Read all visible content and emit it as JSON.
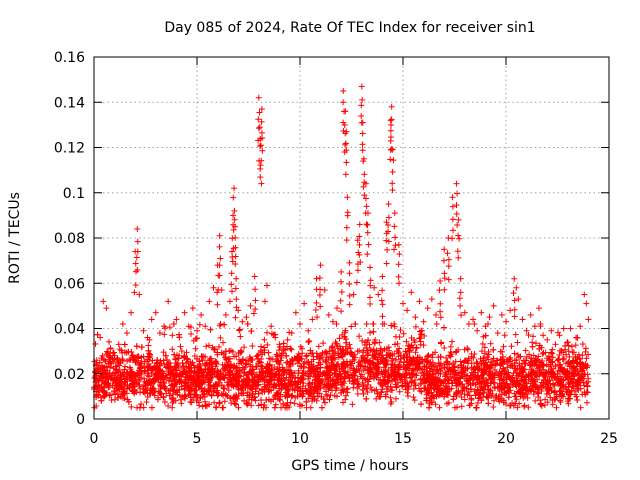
{
  "chart_data": {
    "type": "scatter",
    "title": "Day 085 of 2024, Rate Of TEC Index for receiver sin1",
    "xlabel": "GPS time / hours",
    "ylabel": "ROTI / TECUs",
    "xlim": [
      0,
      25
    ],
    "ylim": [
      0,
      0.16
    ],
    "x_ticks": [
      0,
      5,
      10,
      15,
      20,
      25
    ],
    "y_ticks": [
      0,
      0.02,
      0.04,
      0.06,
      0.08,
      0.1,
      0.12,
      0.14,
      0.16
    ],
    "x_tick_labels": [
      "0",
      "5",
      "10",
      "15",
      "20",
      "25"
    ],
    "y_tick_labels": [
      "0",
      "0.02",
      "0.04",
      "0.06",
      "0.08",
      "0.1",
      "0.12",
      "0.14",
      "0.16"
    ],
    "grid": true,
    "marker": "+",
    "marker_color": "#ff0000",
    "series": [
      {
        "name": "ROTI",
        "x": [
          0.1,
          0.3,
          0.45,
          0.6,
          0.8,
          1.0,
          1.2,
          1.4,
          1.6,
          1.8,
          2.0,
          2.1,
          2.2,
          2.4,
          2.6,
          2.8,
          3.0,
          3.2,
          3.4,
          3.6,
          3.8,
          4.0,
          4.2,
          4.4,
          4.6,
          4.8,
          5.0,
          5.2,
          5.4,
          5.6,
          5.8,
          6.0,
          6.1,
          6.2,
          6.4,
          6.6,
          6.7,
          6.75,
          6.8,
          6.85,
          6.9,
          7.0,
          7.2,
          7.4,
          7.6,
          7.8,
          8.0,
          8.05,
          8.1,
          8.15,
          8.3,
          8.4,
          8.6,
          8.8,
          9.0,
          9.2,
          9.4,
          9.6,
          9.8,
          10.0,
          10.2,
          10.4,
          10.6,
          10.8,
          11.0,
          11.2,
          11.4,
          11.6,
          11.8,
          12.0,
          12.1,
          12.2,
          12.25,
          12.3,
          12.4,
          12.6,
          12.8,
          12.9,
          13.0,
          13.05,
          13.1,
          13.2,
          13.3,
          13.4,
          13.6,
          13.8,
          14.0,
          14.2,
          14.3,
          14.4,
          14.45,
          14.5,
          14.6,
          14.8,
          15.0,
          15.2,
          15.4,
          15.6,
          15.8,
          16.0,
          16.2,
          16.4,
          16.6,
          16.8,
          17.0,
          17.2,
          17.4,
          17.6,
          17.7,
          17.8,
          18.0,
          18.2,
          18.4,
          18.6,
          18.8,
          19.0,
          19.2,
          19.4,
          19.6,
          19.8,
          20.0,
          20.2,
          20.4,
          20.5,
          20.6,
          20.8,
          21.0,
          21.2,
          21.4,
          21.6,
          21.8,
          22.0,
          22.2,
          22.4,
          22.6,
          22.8,
          23.0,
          23.2,
          23.4,
          23.6,
          23.8,
          23.9,
          24.0
        ],
        "y": [
          0.024,
          0.036,
          0.052,
          0.049,
          0.031,
          0.028,
          0.033,
          0.042,
          0.038,
          0.047,
          0.074,
          0.084,
          0.055,
          0.039,
          0.036,
          0.044,
          0.047,
          0.038,
          0.041,
          0.052,
          0.037,
          0.044,
          0.032,
          0.047,
          0.041,
          0.049,
          0.039,
          0.046,
          0.041,
          0.052,
          0.058,
          0.068,
          0.081,
          0.057,
          0.046,
          0.052,
          0.074,
          0.09,
          0.102,
          0.085,
          0.062,
          0.048,
          0.043,
          0.045,
          0.05,
          0.063,
          0.142,
          0.129,
          0.121,
          0.137,
          0.052,
          0.059,
          0.041,
          0.036,
          0.033,
          0.031,
          0.035,
          0.038,
          0.047,
          0.042,
          0.051,
          0.039,
          0.044,
          0.062,
          0.068,
          0.057,
          0.046,
          0.043,
          0.049,
          0.065,
          0.145,
          0.136,
          0.127,
          0.098,
          0.069,
          0.055,
          0.079,
          0.086,
          0.147,
          0.131,
          0.115,
          0.104,
          0.091,
          0.067,
          0.058,
          0.055,
          0.063,
          0.087,
          0.095,
          0.132,
          0.138,
          0.119,
          0.091,
          0.077,
          0.051,
          0.048,
          0.056,
          0.045,
          0.052,
          0.043,
          0.049,
          0.053,
          0.046,
          0.061,
          0.075,
          0.08,
          0.098,
          0.104,
          0.088,
          0.062,
          0.047,
          0.042,
          0.044,
          0.039,
          0.047,
          0.041,
          0.045,
          0.05,
          0.038,
          0.046,
          0.043,
          0.048,
          0.062,
          0.058,
          0.053,
          0.044,
          0.039,
          0.046,
          0.041,
          0.049,
          0.037,
          0.035,
          0.039,
          0.033,
          0.037,
          0.04,
          0.034,
          0.032,
          0.036,
          0.041,
          0.055,
          0.051,
          0.044
        ]
      }
    ],
    "baseline_band": {
      "description_values": "dense cloud of points between about 0.005 and 0.035 across the full day",
      "x_range": [
        0,
        24
      ],
      "y_range": [
        0.005,
        0.035
      ],
      "approx_count": 4200
    }
  }
}
